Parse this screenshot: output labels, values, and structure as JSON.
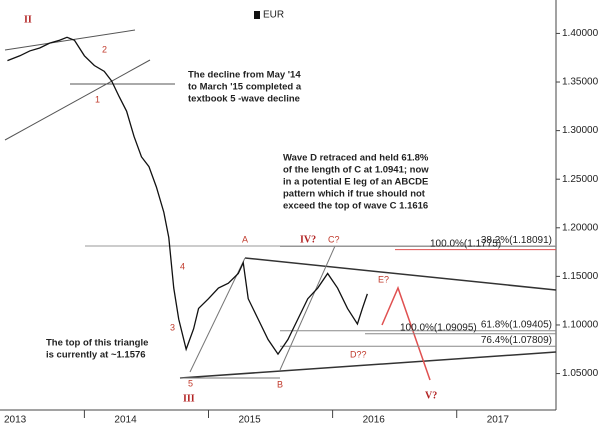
{
  "chart_data": {
    "type": "line",
    "legend": "EUR",
    "x": [
      2013.38,
      2013.48,
      2013.56,
      2013.64,
      2013.72,
      2013.8,
      2013.86,
      2013.92,
      2014.0,
      2014.08,
      2014.16,
      2014.22,
      2014.28,
      2014.34,
      2014.4,
      2014.46,
      2014.52,
      2014.58,
      2014.64,
      2014.68,
      2014.72,
      2014.76,
      2014.82,
      2014.88,
      2014.92,
      2015.0,
      2015.08,
      2015.16,
      2015.24,
      2015.28,
      2015.32,
      2015.4,
      2015.48,
      2015.56,
      2015.64,
      2015.72,
      2015.8,
      2015.88,
      2015.96,
      2016.04,
      2016.12,
      2016.2,
      2016.24,
      2016.28
    ],
    "series": [
      {
        "name": "EUR",
        "color": "#111111",
        "values": [
          1.372,
          1.377,
          1.382,
          1.385,
          1.39,
          1.393,
          1.396,
          1.393,
          1.377,
          1.367,
          1.361,
          1.351,
          1.335,
          1.32,
          1.294,
          1.273,
          1.263,
          1.242,
          1.216,
          1.19,
          1.138,
          1.106,
          1.075,
          1.096,
          1.117,
          1.127,
          1.138,
          1.143,
          1.153,
          1.164,
          1.127,
          1.106,
          1.085,
          1.07,
          1.085,
          1.106,
          1.127,
          1.138,
          1.153,
          1.138,
          1.117,
          1.101,
          1.117,
          1.132
        ]
      }
    ],
    "xlim": [
      2013.32,
      2017.8
    ],
    "xticks": [
      2013,
      2014,
      2015,
      2016,
      2017
    ],
    "ylim": [
      1.0125,
      1.4344
    ],
    "yticks": [
      {
        "value": 1.05,
        "label": "1.05000"
      },
      {
        "value": 1.1,
        "label": "1.10000"
      },
      {
        "value": 1.15,
        "label": "1.15000"
      },
      {
        "value": 1.2,
        "label": "1.20000"
      },
      {
        "value": 1.25,
        "label": "1.25000"
      },
      {
        "value": 1.3,
        "label": "1.30000"
      },
      {
        "value": 1.35,
        "label": "1.35000"
      },
      {
        "value": 1.4,
        "label": "1.40000"
      }
    ],
    "levels": [
      {
        "value": 1.18091,
        "label": "38.2%(1.18091)",
        "color": "#888888"
      },
      {
        "value": 1.1775,
        "label": "100.0%(1.1775)",
        "color": "#e05050"
      },
      {
        "value": 1.09405,
        "label": "61.8%(1.09405)",
        "color": "#888888"
      },
      {
        "value": 1.09095,
        "label": "100.0%(1.09095)",
        "color": "#888888"
      },
      {
        "value": 1.07809,
        "label": "76.4%(1.07809)",
        "color": "#888888"
      }
    ],
    "annotations": {
      "note1": [
        "The decline from May '14",
        "to March '15 completed a",
        "textbook 5 -wave decline"
      ],
      "note2": [
        "Wave D retraced and held 61.8%",
        "of the length of C at 1.0941; now",
        "in a potential E leg of an ABCDE",
        "pattern which if true should not",
        "exceed the top of wave C 1.1616"
      ],
      "note3": [
        "The top of this triangle",
        "is currently at ~1.1576"
      ],
      "waves": [
        "II",
        "2",
        "1",
        "4",
        "3",
        "5",
        "III",
        "A",
        "IV?",
        "C?",
        "E?",
        "B",
        "D??",
        "V?"
      ]
    }
  }
}
